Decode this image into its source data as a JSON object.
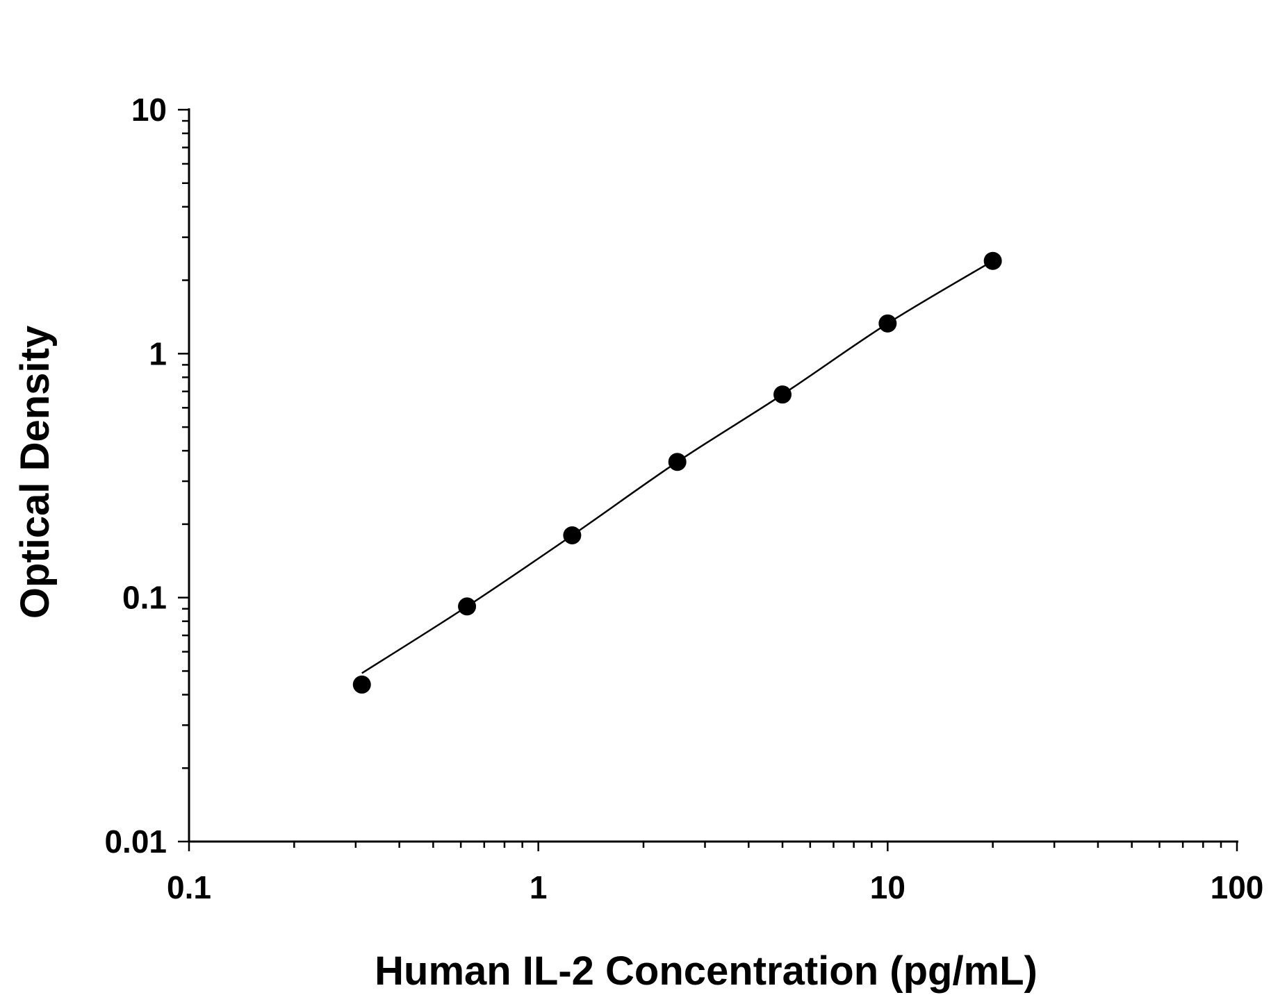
{
  "chart_data": {
    "type": "scatter",
    "xlabel": "Human IL-2 Concentration (pg/mL)",
    "ylabel": "Optical Density",
    "x_scale": "log",
    "y_scale": "log",
    "xlim": [
      0.1,
      100
    ],
    "ylim": [
      0.01,
      10
    ],
    "x_ticks": [
      0.1,
      1,
      10,
      100
    ],
    "x_tick_labels": [
      "0.1",
      "1",
      "10",
      "100"
    ],
    "y_ticks": [
      0.01,
      0.1,
      1,
      10
    ],
    "y_tick_labels": [
      "0.01",
      "0.1",
      "1",
      "10"
    ],
    "grid": false,
    "legend": "none",
    "series": [
      {
        "x": [
          0.3125,
          0.625,
          1.25,
          2.5,
          5,
          10,
          20
        ],
        "y": [
          0.044,
          0.092,
          0.18,
          0.36,
          0.68,
          1.33,
          2.4
        ]
      }
    ],
    "fit_curve": {
      "x": [
        0.3125,
        0.625,
        1.25,
        2.5,
        5,
        10,
        20
      ],
      "y": [
        0.049,
        0.092,
        0.18,
        0.36,
        0.68,
        1.33,
        2.4
      ]
    },
    "colors": {
      "marker": "#000000",
      "line": "#000000",
      "axis": "#000000"
    }
  }
}
